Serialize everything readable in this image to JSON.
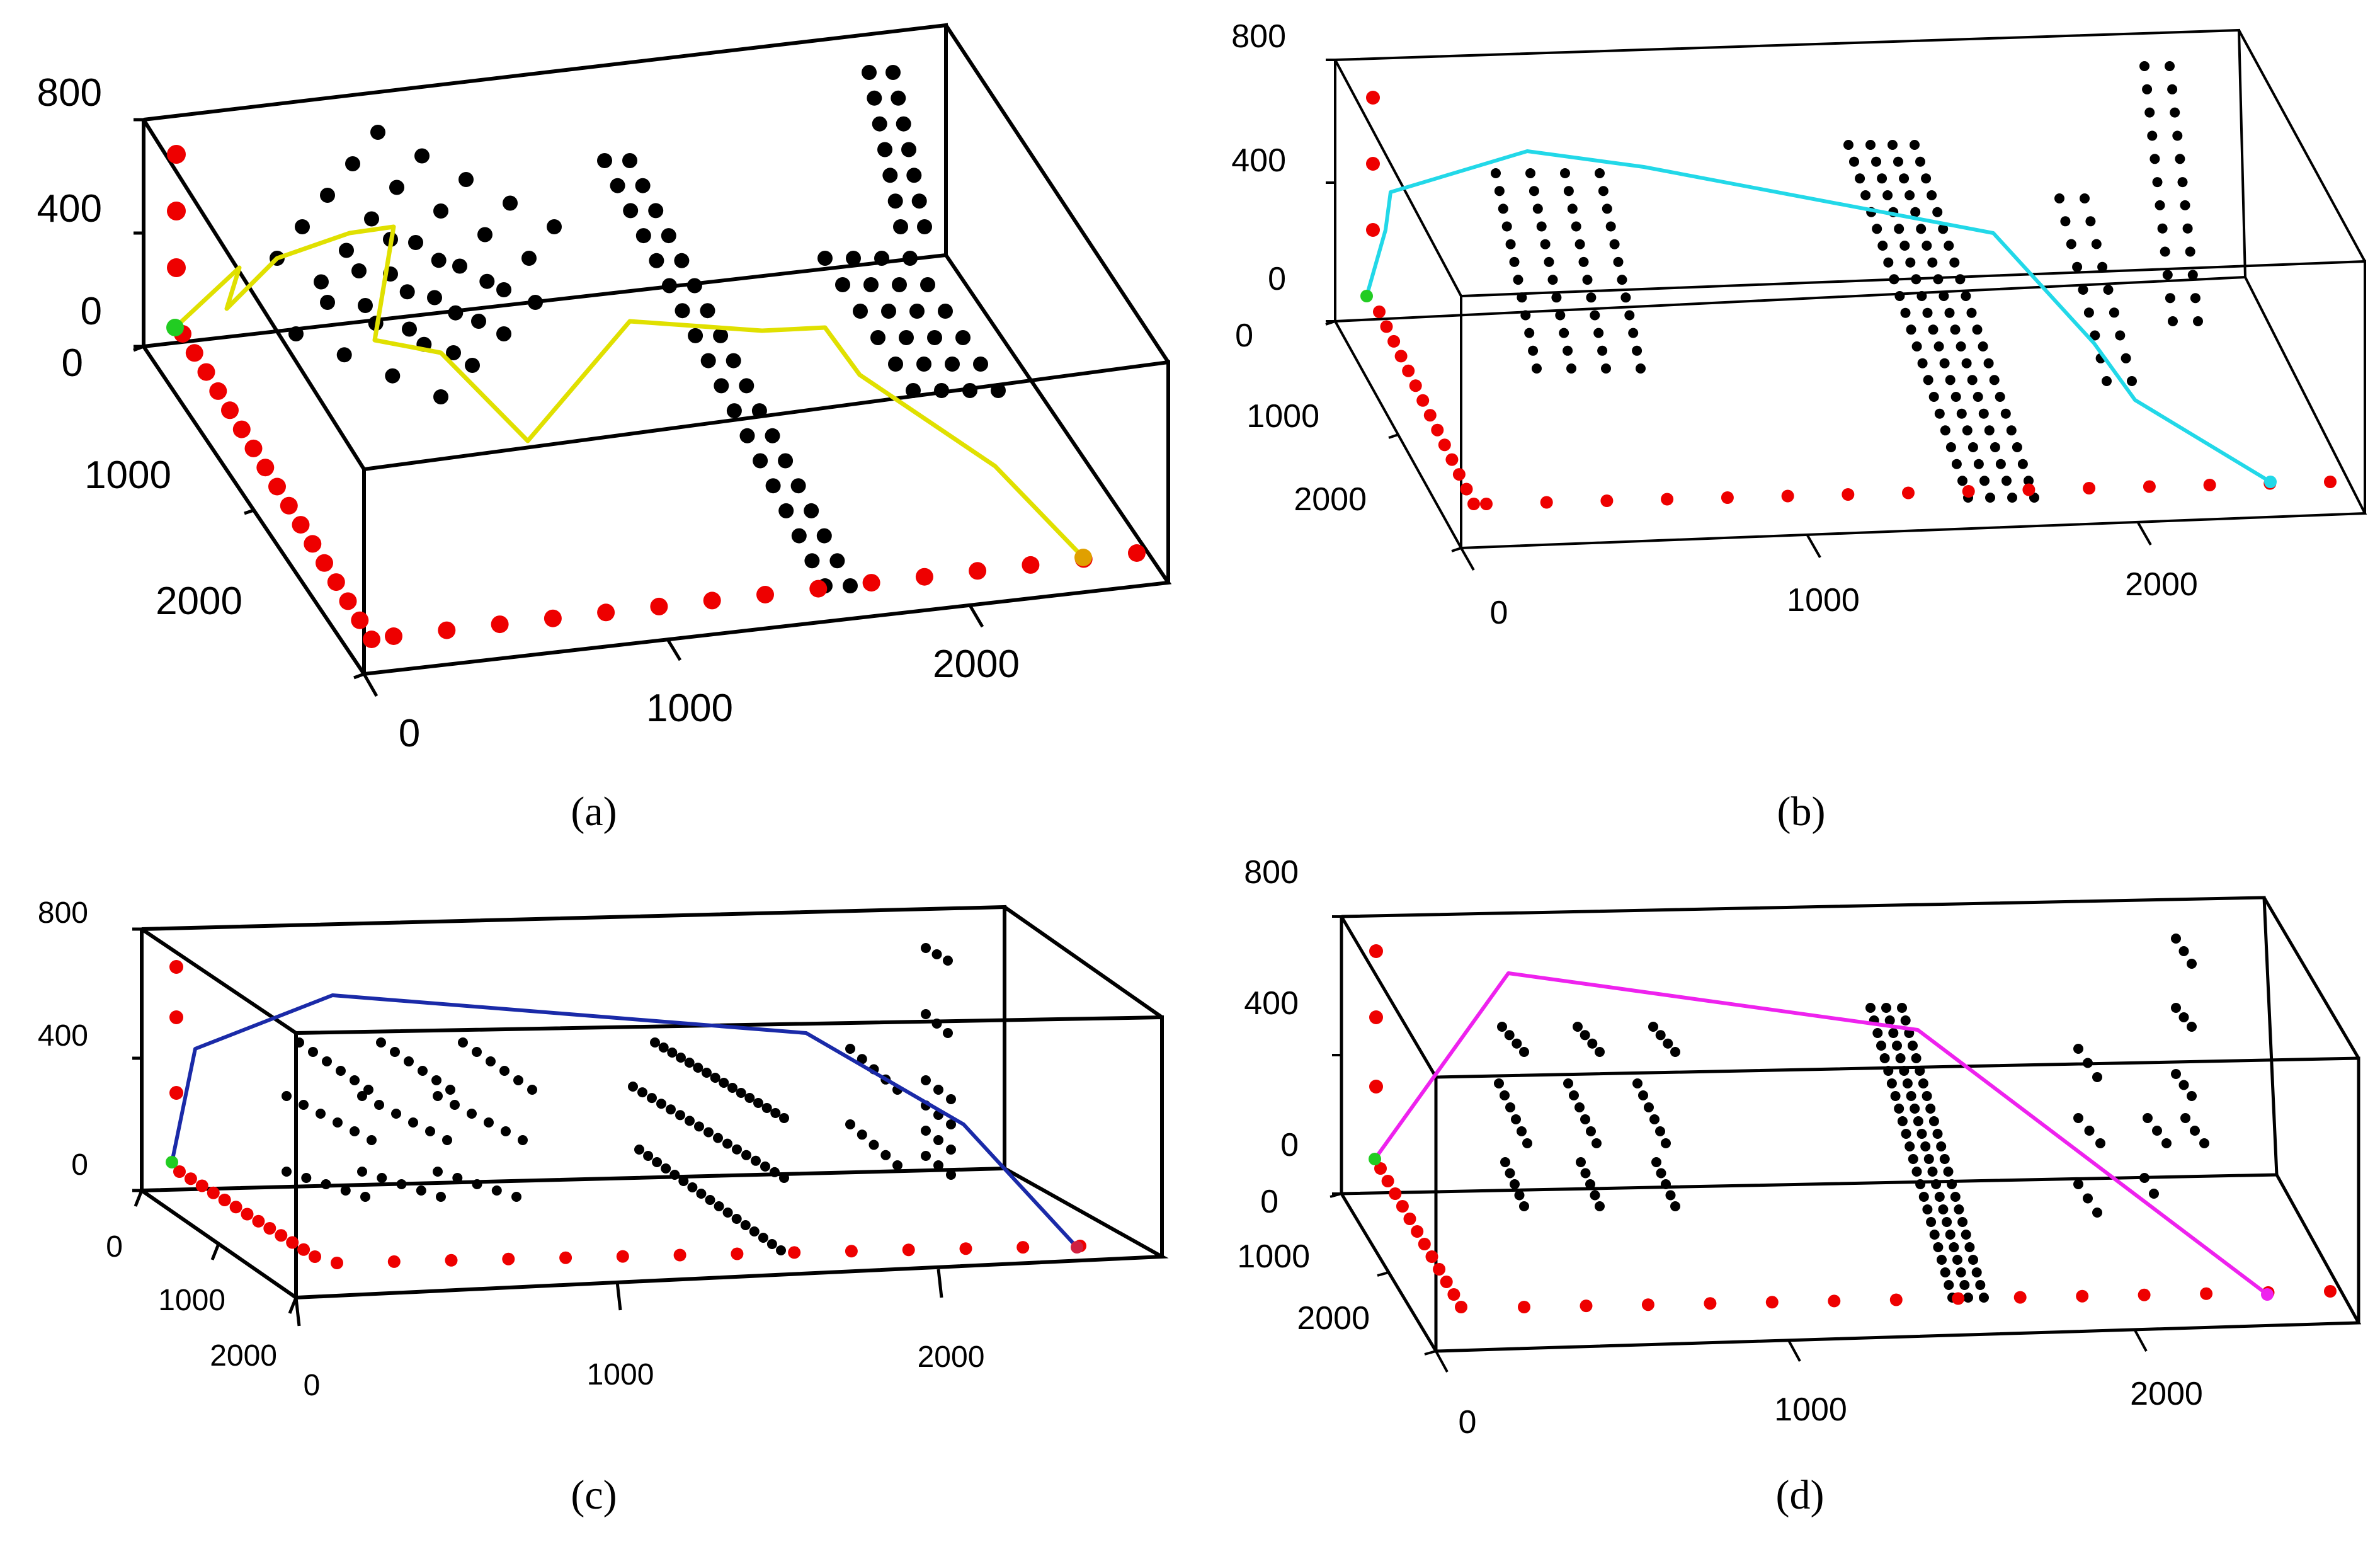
{
  "figure": {
    "panel_labels": [
      "(a)",
      "(b)",
      "(c)",
      "(d)"
    ]
  },
  "chart_data": [
    {
      "panel": "(a)",
      "type": "scatter3d",
      "path_color": "#e0e000",
      "z_ticks": [
        "800",
        "400",
        "0"
      ],
      "y_ticks": [
        "0",
        "1000",
        "2000"
      ],
      "x_ticks": [
        "0",
        "1000",
        "2000"
      ],
      "xlim": [
        0,
        2500
      ],
      "ylim": [
        0,
        2500
      ],
      "zlim": [
        0,
        800
      ],
      "path": [
        [
          0,
          0,
          0
        ],
        [
          100,
          100,
          350
        ],
        [
          150,
          80,
          150
        ],
        [
          500,
          300,
          600
        ],
        [
          700,
          350,
          650
        ],
        [
          700,
          700,
          0
        ],
        [
          900,
          950,
          0
        ],
        [
          1050,
          1350,
          -400
        ],
        [
          1250,
          1500,
          0
        ],
        [
          1500,
          1550,
          0
        ],
        [
          1650,
          1600,
          0
        ],
        [
          1850,
          1650,
          -50
        ],
        [
          2250,
          2100,
          -150
        ],
        [
          2400,
          2450,
          -400
        ]
      ]
    },
    {
      "panel": "(b)",
      "type": "scatter3d",
      "path_color": "#22d8e8",
      "z_ticks": [
        "800",
        "400",
        "0"
      ],
      "y_ticks": [
        "0",
        "1000",
        "2000"
      ],
      "x_ticks": [
        "0",
        "1000",
        "2000"
      ],
      "xlim": [
        0,
        2500
      ],
      "ylim": [
        0,
        2500
      ],
      "zlim": [
        0,
        800
      ],
      "path": [
        [
          0,
          0,
          0
        ],
        [
          80,
          50,
          350
        ],
        [
          500,
          300,
          650
        ],
        [
          850,
          500,
          650
        ],
        [
          1500,
          900,
          450
        ],
        [
          1900,
          1000,
          400
        ],
        [
          2200,
          1250,
          0
        ],
        [
          2400,
          1450,
          -250
        ],
        [
          2500,
          1600,
          -350
        ]
      ]
    },
    {
      "panel": "(c)",
      "type": "scatter3d",
      "path_color": "#1a2aa8",
      "z_ticks": [
        "800",
        "400",
        "0"
      ],
      "y_ticks": [
        "0",
        "1000",
        "2000"
      ],
      "x_ticks": [
        "0",
        "1000",
        "2000"
      ],
      "xlim": [
        0,
        2500
      ],
      "ylim": [
        0,
        2500
      ],
      "zlim": [
        0,
        800
      ],
      "path": [
        [
          0,
          0,
          0
        ],
        [
          80,
          50,
          350
        ],
        [
          500,
          300,
          550
        ],
        [
          1600,
          900,
          350
        ],
        [
          2100,
          1300,
          0
        ],
        [
          2500,
          1500,
          -300
        ]
      ]
    },
    {
      "panel": "(d)",
      "type": "scatter3d",
      "path_color": "#ee22ee",
      "z_ticks": [
        "800",
        "400",
        "0"
      ],
      "y_ticks": [
        "0",
        "1000",
        "2000"
      ],
      "x_ticks": [
        "0",
        "1000",
        "2000"
      ],
      "xlim": [
        0,
        2500
      ],
      "ylim": [
        0,
        2500
      ],
      "zlim": [
        0,
        800
      ],
      "path": [
        [
          0,
          0,
          0
        ],
        [
          500,
          300,
          650
        ],
        [
          1700,
          900,
          500
        ],
        [
          2500,
          1500,
          -300
        ]
      ]
    }
  ]
}
